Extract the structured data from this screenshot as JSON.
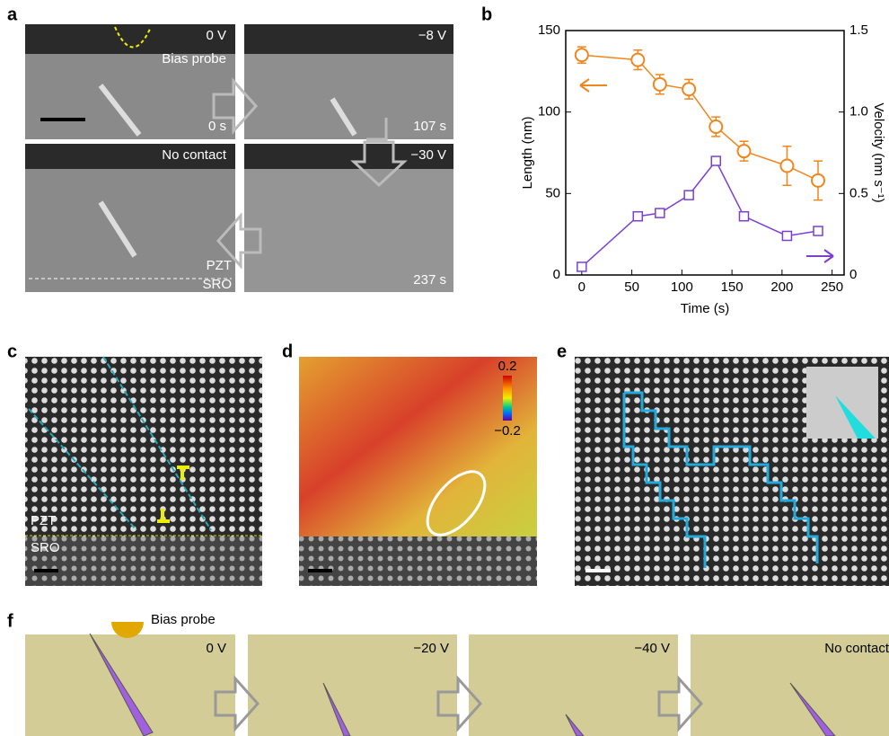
{
  "panel_labels": [
    "a",
    "b",
    "c",
    "d",
    "e",
    "f"
  ],
  "panel_a": {
    "texts": [
      "0 V",
      "Bias probe",
      "0 s",
      "−8 V",
      "107 s",
      "No contact",
      "−30 V",
      "PZT",
      "SRO",
      "237 s"
    ]
  },
  "chart_data": {
    "type": "line",
    "xlabel": "Time (s)",
    "ylabel": "Length (nm)",
    "y2label": "Velocity (nm s⁻¹)",
    "x": [
      0,
      56,
      78,
      107,
      134,
      162,
      205,
      236
    ],
    "series": [
      {
        "color": "#f0861e",
        "marker": "circle",
        "values": [
          135,
          132,
          117,
          114,
          91,
          76,
          67,
          58
        ],
        "errors": [
          5,
          6,
          6,
          6,
          6,
          6,
          12,
          12
        ]
      },
      {
        "color": "#7b3fd6",
        "marker": "square",
        "axis": "y2",
        "values": [
          0.05,
          0.36,
          0.38,
          0.49,
          0.7,
          0.36,
          0.24,
          0.27
        ]
      }
    ],
    "xlim": [
      -16,
      262
    ],
    "xticks": [
      0,
      50,
      100,
      150,
      200,
      250
    ],
    "ylim": [
      0,
      150
    ],
    "yticks": [
      0,
      50,
      100,
      150
    ],
    "y2lim": [
      0,
      1.5
    ],
    "y2ticks": [
      0,
      0.5,
      {
        "value": 1,
        "label": "1.0"
      },
      1.5
    ]
  },
  "panel_c": {
    "texts": [
      "PZT",
      "SRO"
    ]
  },
  "panel_d": {
    "colorbar": [
      "0.2",
      "−0.2"
    ]
  },
  "panel_f": {
    "texts": [
      "Bias probe",
      "0 V",
      "−20 V",
      "−40 V",
      "No contact"
    ]
  }
}
